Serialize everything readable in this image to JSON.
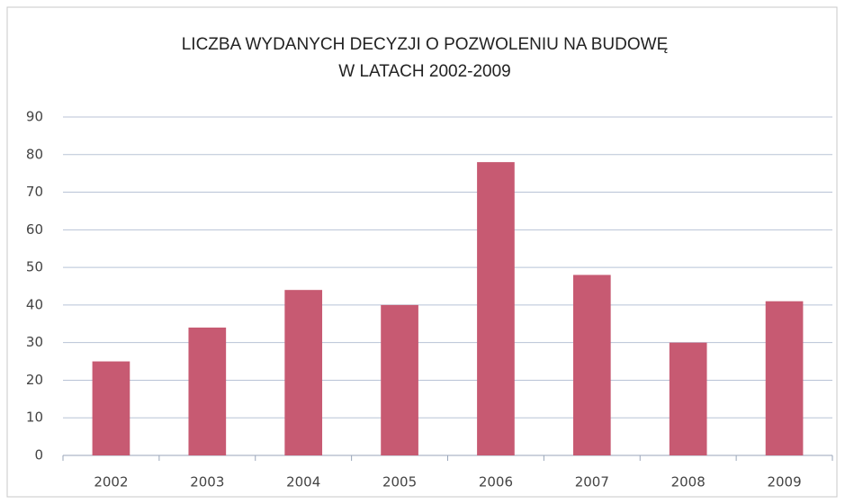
{
  "chart_data": {
    "type": "bar",
    "title": [
      "LICZBA WYDANYCH DECYZJI O POZWOLENIU NA BUDOWĘ",
      "W LATACH 2002-2009"
    ],
    "categories": [
      "2002",
      "2003",
      "2004",
      "2005",
      "2006",
      "2007",
      "2008",
      "2009"
    ],
    "values": [
      25,
      34,
      44,
      40,
      78,
      48,
      30,
      41
    ],
    "color": "#c75a72",
    "ylim": [
      0,
      90
    ],
    "yticks": [
      0,
      10,
      20,
      30,
      40,
      50,
      60,
      70,
      80,
      90
    ],
    "grid": true
  }
}
